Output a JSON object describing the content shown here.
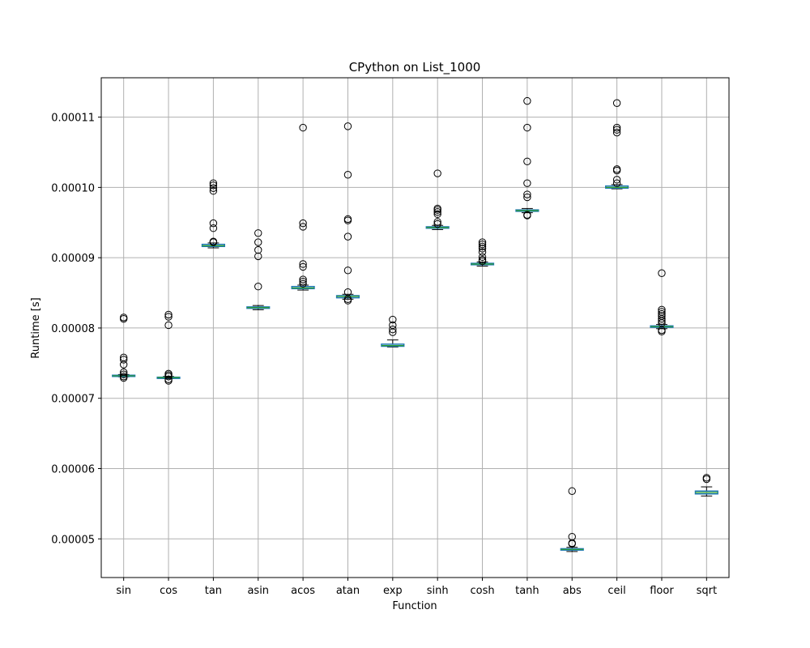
{
  "chart_data": {
    "type": "box",
    "title": "CPython on List_1000",
    "xlabel": "Function",
    "ylabel": "Runtime [s]",
    "ylim": [
      4.45e-05,
      0.0001156
    ],
    "yticks": [
      5e-05,
      6e-05,
      7e-05,
      8e-05,
      9e-05,
      0.0001,
      0.00011
    ],
    "ytick_labels": [
      "0.00005",
      "0.00006",
      "0.00007",
      "0.00008",
      "0.00009",
      "0.00010",
      "0.00011"
    ],
    "grid": true,
    "colors": {
      "box": "#1f77b4",
      "median": "#2ca02c",
      "whisker": "#000000",
      "grid": "#b0b0b0"
    },
    "categories": [
      "sin",
      "cos",
      "tan",
      "asin",
      "acos",
      "atan",
      "exp",
      "sinh",
      "cosh",
      "tanh",
      "abs",
      "ceil",
      "floor",
      "sqrt"
    ],
    "boxes": [
      {
        "category": "sin",
        "whislo": 7.305e-05,
        "q1": 7.315e-05,
        "median": 7.32e-05,
        "q3": 7.328e-05,
        "whishi": 7.338e-05,
        "fliers": [
          8.15e-05,
          8.13e-05,
          7.58e-05,
          7.55e-05,
          7.48e-05,
          7.37e-05,
          7.34e-05,
          7.31e-05,
          7.29e-05
        ]
      },
      {
        "category": "cos",
        "whislo": 7.28e-05,
        "q1": 7.29e-05,
        "median": 7.295e-05,
        "q3": 7.3e-05,
        "whishi": 7.31e-05,
        "fliers": [
          8.19e-05,
          8.16e-05,
          8.04e-05,
          7.35e-05,
          7.33e-05,
          7.31e-05,
          7.27e-05,
          7.25e-05
        ]
      },
      {
        "category": "tan",
        "whislo": 9.14e-05,
        "q1": 9.16e-05,
        "median": 9.17e-05,
        "q3": 9.19e-05,
        "whishi": 9.21e-05,
        "fliers": [
          0.0001006,
          0.0001003,
          9.99e-05,
          9.95e-05,
          9.49e-05,
          9.42e-05,
          9.23e-05,
          9.22e-05
        ]
      },
      {
        "category": "asin",
        "whislo": 8.26e-05,
        "q1": 8.28e-05,
        "median": 8.29e-05,
        "q3": 8.3e-05,
        "whishi": 8.32e-05,
        "fliers": [
          9.35e-05,
          9.22e-05,
          9.11e-05,
          9.02e-05,
          8.59e-05
        ]
      },
      {
        "category": "acos",
        "whislo": 8.54e-05,
        "q1": 8.56e-05,
        "median": 8.57e-05,
        "q3": 8.59e-05,
        "whishi": 8.61e-05,
        "fliers": [
          0.0001085,
          9.49e-05,
          9.44e-05,
          8.91e-05,
          8.87e-05,
          8.69e-05,
          8.66e-05,
          8.63e-05
        ]
      },
      {
        "category": "atan",
        "whislo": 8.41e-05,
        "q1": 8.43e-05,
        "median": 8.45e-05,
        "q3": 8.46e-05,
        "whishi": 8.48e-05,
        "fliers": [
          0.0001087,
          0.0001018,
          9.55e-05,
          9.53e-05,
          9.3e-05,
          8.82e-05,
          8.51e-05,
          8.41e-05,
          8.39e-05
        ]
      },
      {
        "category": "exp",
        "whislo": 7.73e-05,
        "q1": 7.74e-05,
        "median": 7.75e-05,
        "q3": 7.77e-05,
        "whishi": 7.83e-05,
        "fliers": [
          8.12e-05,
          8.04e-05,
          7.98e-05,
          7.94e-05
        ]
      },
      {
        "category": "sinh",
        "whislo": 9.4e-05,
        "q1": 9.42e-05,
        "median": 9.43e-05,
        "q3": 9.44e-05,
        "whishi": 9.46e-05,
        "fliers": [
          0.000102,
          9.7e-05,
          9.68e-05,
          9.65e-05,
          9.62e-05,
          9.51e-05,
          9.48e-05
        ]
      },
      {
        "category": "cosh",
        "whislo": 8.88e-05,
        "q1": 8.9e-05,
        "median": 8.91e-05,
        "q3": 8.92e-05,
        "whishi": 8.94e-05,
        "fliers": [
          9.22e-05,
          9.19e-05,
          9.16e-05,
          9.13e-05,
          9.08e-05,
          9.01e-05,
          8.97e-05,
          8.95e-05
        ]
      },
      {
        "category": "tanh",
        "whislo": 9.64e-05,
        "q1": 9.66e-05,
        "median": 9.67e-05,
        "q3": 9.68e-05,
        "whishi": 9.7e-05,
        "fliers": [
          0.0001123,
          0.0001085,
          0.0001037,
          0.0001006,
          9.9e-05,
          9.86e-05,
          9.61e-05,
          9.6e-05
        ]
      },
      {
        "category": "abs",
        "whislo": 4.82e-05,
        "q1": 4.84e-05,
        "median": 4.85e-05,
        "q3": 4.86e-05,
        "whishi": 4.88e-05,
        "fliers": [
          5.68e-05,
          5.03e-05,
          4.94e-05,
          4.93e-05
        ]
      },
      {
        "category": "ceil",
        "whislo": 9.98e-05,
        "q1": 9.99e-05,
        "median": 0.0001,
        "q3": 0.0001002,
        "whishi": 0.0001004,
        "fliers": [
          0.000112,
          0.0001085,
          0.0001082,
          0.0001078,
          0.0001026,
          0.0001024,
          0.0001011,
          0.0001006
        ]
      },
      {
        "category": "floor",
        "whislo": 7.99e-05,
        "q1": 8.01e-05,
        "median": 8.02e-05,
        "q3": 8.03e-05,
        "whishi": 8.05e-05,
        "fliers": [
          8.78e-05,
          8.26e-05,
          8.23e-05,
          8.2e-05,
          8.17e-05,
          8.13e-05,
          8.1e-05,
          8.07e-05,
          7.97e-05,
          7.95e-05
        ]
      },
      {
        "category": "sqrt",
        "whislo": 5.61e-05,
        "q1": 5.64e-05,
        "median": 5.66e-05,
        "q3": 5.68e-05,
        "whishi": 5.74e-05,
        "fliers": [
          5.87e-05,
          5.85e-05
        ]
      }
    ]
  }
}
